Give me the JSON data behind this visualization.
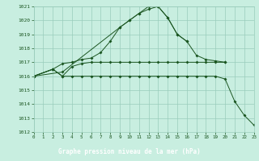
{
  "title": "Graphe pression niveau de la mer (hPa)",
  "bg_color": "#c8eee0",
  "grid_color": "#99ccbb",
  "line_color": "#1a5520",
  "title_bg": "#1a5520",
  "title_fg": "#ffffff",
  "xlim": [
    0,
    23
  ],
  "ylim": [
    1012,
    1021
  ],
  "yticks": [
    1012,
    1013,
    1014,
    1015,
    1016,
    1017,
    1018,
    1019,
    1020,
    1021
  ],
  "xticks": [
    0,
    1,
    2,
    3,
    4,
    5,
    6,
    7,
    8,
    9,
    10,
    11,
    12,
    13,
    14,
    15,
    16,
    17,
    18,
    19,
    20,
    21,
    22,
    23
  ],
  "line1_x": [
    0,
    3,
    9,
    10,
    11,
    12,
    13,
    14,
    15,
    16
  ],
  "line1_y": [
    1016.0,
    1016.3,
    1019.5,
    1020.0,
    1020.5,
    1021.0,
    1021.0,
    1020.2,
    1019.0,
    1018.5
  ],
  "line2_x": [
    0,
    2,
    3,
    4,
    5,
    6,
    7,
    8,
    9,
    10,
    11,
    12,
    13,
    14,
    15,
    16,
    17,
    18,
    19,
    20
  ],
  "line2_y": [
    1016.0,
    1016.5,
    1016.9,
    1017.0,
    1017.2,
    1017.3,
    1017.7,
    1018.5,
    1019.5,
    1020.0,
    1020.5,
    1020.8,
    1021.0,
    1020.2,
    1019.0,
    1018.5,
    1017.5,
    1017.2,
    1017.1,
    1017.0
  ],
  "line3_x": [
    0,
    2,
    3,
    4,
    5,
    6,
    7,
    8,
    9,
    10,
    11,
    12,
    13,
    14,
    15,
    16,
    17,
    18,
    19,
    20
  ],
  "line3_y": [
    1016.0,
    1016.5,
    1016.0,
    1016.7,
    1016.9,
    1017.0,
    1017.0,
    1017.0,
    1017.0,
    1017.0,
    1017.0,
    1017.0,
    1017.0,
    1017.0,
    1017.0,
    1017.0,
    1017.0,
    1017.0,
    1017.0,
    1017.0
  ],
  "line4_x": [
    0,
    2,
    3,
    4,
    5,
    6,
    7,
    8,
    9,
    10,
    11,
    12,
    13,
    14,
    15,
    16,
    17,
    18,
    19,
    20,
    21,
    22,
    23
  ],
  "line4_y": [
    1016.0,
    1016.5,
    1016.0,
    1016.0,
    1016.0,
    1016.0,
    1016.0,
    1016.0,
    1016.0,
    1016.0,
    1016.0,
    1016.0,
    1016.0,
    1016.0,
    1016.0,
    1016.0,
    1016.0,
    1016.0,
    1016.0,
    1015.8,
    1014.2,
    1013.2,
    1012.5
  ]
}
